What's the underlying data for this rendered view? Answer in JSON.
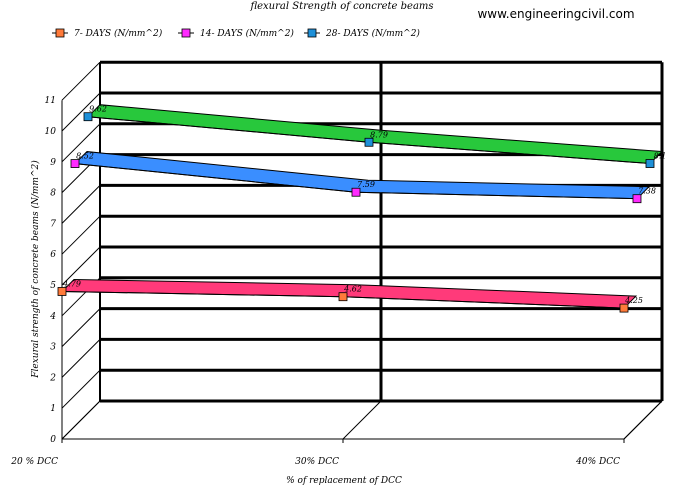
{
  "chart_data": {
    "type": "line",
    "title": "flexural Strength of concrete beams",
    "xlabel": "% of replacement of DCC",
    "ylabel": "Flexural strength of concrete beams (N/mm^2)",
    "categories": [
      "20 % DCC",
      "30% DCC",
      "40% DCC"
    ],
    "ylim": [
      0,
      11
    ],
    "yticks": [
      "0",
      "1",
      "2",
      "3",
      "4",
      "5",
      "6",
      "7",
      "8",
      "9",
      "10",
      "11"
    ],
    "grid": true,
    "legend_position": "top-left",
    "series": [
      {
        "name": "7- DAYS (N/mm^2)",
        "values": [
          4.79,
          4.62,
          4.25
        ],
        "labels": [
          "4.79",
          "4.62",
          "4.25"
        ],
        "color": "#ff3a7a",
        "marker": "#ff7a3a"
      },
      {
        "name": "14- DAYS (N/mm^2)",
        "values": [
          8.52,
          7.59,
          7.38
        ],
        "labels": [
          "8.52",
          "7.59",
          "7.38"
        ],
        "color": "#3a8eff",
        "marker": "#ff2aff"
      },
      {
        "name": "28- DAYS (N/mm^2)",
        "values": [
          9.62,
          8.79,
          8.1
        ],
        "labels": [
          "9.62",
          "8.79",
          "8.1"
        ],
        "color": "#28c83c",
        "marker": "#1e90d8"
      }
    ]
  },
  "watermark": "www.engineeringcivil.com"
}
